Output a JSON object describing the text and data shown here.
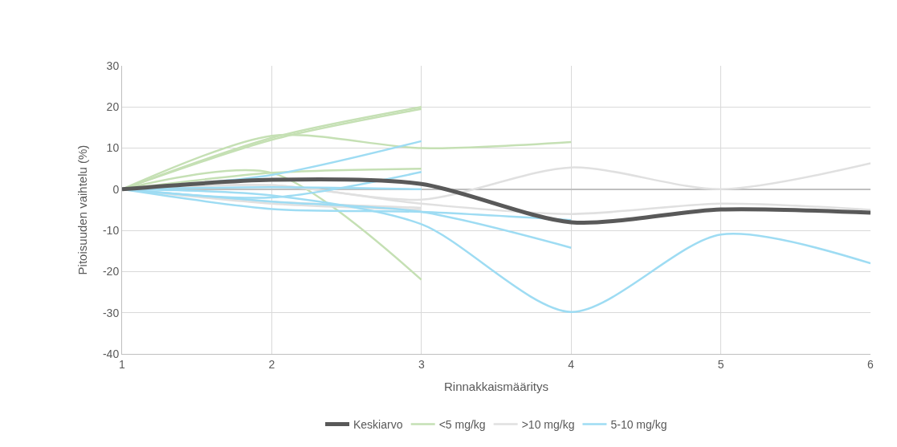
{
  "chart_data": {
    "type": "line",
    "xlabel": "Rinnakkaismääritys",
    "ylabel": "Pitoisuuden vaihtelu (%)",
    "xlim": [
      1,
      6
    ],
    "xticks": [
      1,
      2,
      3,
      4,
      5,
      6
    ],
    "ylim": [
      -40,
      30
    ],
    "yticks": [
      -40,
      -30,
      -20,
      -10,
      0,
      10,
      20,
      30
    ],
    "grid": true,
    "legend": "bottom",
    "line_style": "solid",
    "marker": "none",
    "series": [
      {
        "name": "<5 mg/kg",
        "color": "#c5e0b4",
        "x": [
          1,
          2,
          3
        ],
        "values": [
          0,
          12,
          19.5
        ]
      },
      {
        "color": "#c5e0b4",
        "x": [
          1,
          2,
          3
        ],
        "values": [
          0,
          12.5,
          20
        ]
      },
      {
        "color": "#c5e0b4",
        "x": [
          1,
          2,
          3,
          4
        ],
        "values": [
          0,
          13,
          10,
          11.5
        ]
      },
      {
        "color": "#c5e0b4",
        "x": [
          1,
          2,
          3
        ],
        "values": [
          0,
          4,
          5
        ]
      },
      {
        "color": "#c5e0b4",
        "x": [
          1,
          2,
          3
        ],
        "values": [
          0,
          4,
          -22
        ]
      },
      {
        "name": ">10 mg/kg",
        "color": "#e0e0e0",
        "x": [
          1,
          2,
          3,
          4,
          5,
          6
        ],
        "values": [
          0,
          1,
          -2.5,
          5.3,
          0,
          6.3
        ]
      },
      {
        "color": "#e0e0e0",
        "x": [
          1,
          2,
          3,
          4,
          5,
          6
        ],
        "values": [
          0,
          1,
          -3.5,
          -6,
          -3.5,
          -5
        ]
      },
      {
        "color": "#e0e0e0",
        "x": [
          1,
          2,
          3
        ],
        "values": [
          0,
          -3,
          -4.5
        ]
      },
      {
        "color": "#e0e0e0",
        "x": [
          1,
          2,
          3
        ],
        "values": [
          0,
          -3.5,
          -5
        ]
      },
      {
        "name": "5-10 mg/kg",
        "color": "#9edcf3",
        "x": [
          1,
          2,
          3
        ],
        "values": [
          0,
          3.5,
          11.7
        ]
      },
      {
        "color": "#9edcf3",
        "x": [
          1,
          2,
          3
        ],
        "values": [
          0,
          -2,
          4.2
        ]
      },
      {
        "color": "#9edcf3",
        "x": [
          1,
          2,
          3
        ],
        "values": [
          0,
          0.5,
          0
        ]
      },
      {
        "color": "#9edcf3",
        "x": [
          1,
          2,
          3,
          4
        ],
        "values": [
          0,
          -4.8,
          -5.5,
          -7.5
        ]
      },
      {
        "color": "#9edcf3",
        "x": [
          1,
          2,
          3,
          4
        ],
        "values": [
          0,
          -3,
          -5.5,
          -14.2
        ]
      },
      {
        "color": "#9edcf3",
        "x": [
          1,
          2,
          3,
          4,
          5,
          6
        ],
        "values": [
          0,
          -1.5,
          -8.5,
          -29.8,
          -11,
          -18
        ]
      },
      {
        "name": "Keskiarvo",
        "color": "#595959",
        "x": [
          1,
          2,
          3,
          4,
          5,
          6
        ],
        "values": [
          0,
          2.3,
          1.3,
          -8,
          -4.9,
          -5.7
        ]
      }
    ]
  }
}
